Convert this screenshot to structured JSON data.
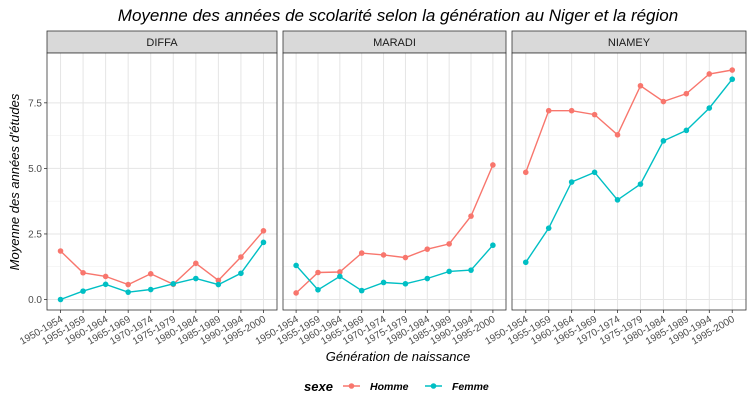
{
  "chart_data": {
    "type": "line",
    "title": "Moyenne des années de scolarité selon la génération au Niger et la région",
    "xlabel": "Génération de naissance",
    "ylabel": "Moyenne des années d'études",
    "ylim": [
      -0.4,
      9.4
    ],
    "yticks": [
      0.0,
      2.5,
      5.0,
      7.5
    ],
    "ytick_labels": [
      "0.0",
      "2.5",
      "5.0",
      "7.5"
    ],
    "categories": [
      "1950-1954",
      "1955-1959",
      "1960-1964",
      "1965-1969",
      "1970-1974",
      "1975-1979",
      "1980-1984",
      "1985-1989",
      "1990-1994",
      "1995-2000"
    ],
    "grid": true,
    "legend": {
      "title": "sexe",
      "position": "bottom",
      "items": [
        {
          "label": "Homme",
          "color": "#F8766D"
        },
        {
          "label": "Femme",
          "color": "#00BFC4"
        }
      ]
    },
    "panels": [
      {
        "name": "DIFFA",
        "series": [
          {
            "name": "Homme",
            "color": "#F8766D",
            "values": [
              1.85,
              1.02,
              0.88,
              0.57,
              0.98,
              0.58,
              1.38,
              0.73,
              1.62,
              2.62
            ]
          },
          {
            "name": "Femme",
            "color": "#00BFC4",
            "values": [
              0.0,
              0.32,
              0.58,
              0.28,
              0.38,
              0.6,
              0.8,
              0.57,
              1.0,
              2.18
            ]
          }
        ]
      },
      {
        "name": "MARADI",
        "series": [
          {
            "name": "Homme",
            "color": "#F8766D",
            "values": [
              0.25,
              1.03,
              1.05,
              1.77,
              1.7,
              1.6,
              1.92,
              2.12,
              3.18,
              5.13
            ]
          },
          {
            "name": "Femme",
            "color": "#00BFC4",
            "values": [
              1.3,
              0.37,
              0.88,
              0.34,
              0.65,
              0.6,
              0.8,
              1.07,
              1.12,
              2.07
            ]
          }
        ]
      },
      {
        "name": "NIAMEY",
        "series": [
          {
            "name": "Homme",
            "color": "#F8766D",
            "values": [
              4.85,
              7.2,
              7.2,
              7.05,
              6.28,
              8.15,
              7.55,
              7.85,
              8.6,
              8.75
            ]
          },
          {
            "name": "Femme",
            "color": "#00BFC4",
            "values": [
              1.42,
              2.72,
              4.48,
              4.85,
              3.8,
              4.4,
              6.05,
              6.45,
              7.3,
              8.4
            ]
          }
        ]
      }
    ]
  }
}
